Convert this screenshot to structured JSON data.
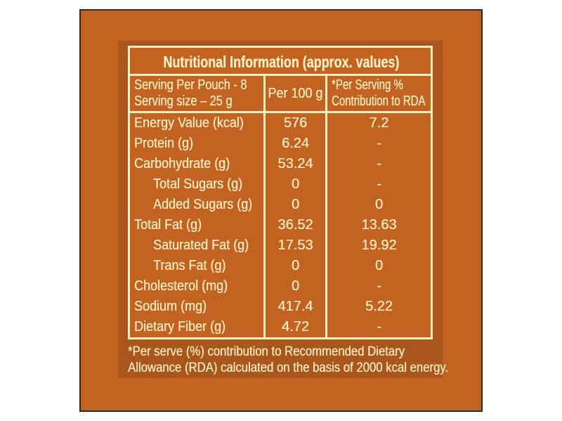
{
  "colors": {
    "page_bg": "#ffffff",
    "card_orange": "#c26321",
    "panel_shadow": "#ab561c",
    "cream": "#f9efc3",
    "card_border": "#2d2a26"
  },
  "label": {
    "title": "Nutritional Information (approx. values)",
    "header": {
      "col1_line1": "Serving Per Pouch - 8",
      "col1_line2": "Serving size – 25 g",
      "col2": "Per 100 g",
      "col3_line1": "*Per Serving %",
      "col3_line2": "Contribution to RDA"
    },
    "rows": [
      {
        "label": "Energy Value (kcal)",
        "indent": false,
        "per_100g": "576",
        "rda": "7.2"
      },
      {
        "label": "Protein (g)",
        "indent": false,
        "per_100g": "6.24",
        "rda": "-"
      },
      {
        "label": "Carbohydrate (g)",
        "indent": false,
        "per_100g": "53.24",
        "rda": "-"
      },
      {
        "label": "Total Sugars (g)",
        "indent": true,
        "per_100g": "0",
        "rda": "-"
      },
      {
        "label": "Added Sugars (g)",
        "indent": true,
        "per_100g": "0",
        "rda": "0"
      },
      {
        "label": "Total Fat (g)",
        "indent": false,
        "per_100g": "36.52",
        "rda": "13.63"
      },
      {
        "label": "Saturated Fat (g)",
        "indent": true,
        "per_100g": "17.53",
        "rda": "19.92"
      },
      {
        "label": "Trans Fat (g)",
        "indent": true,
        "per_100g": "0",
        "rda": "0"
      },
      {
        "label": "Cholesterol (mg)",
        "indent": false,
        "per_100g": "0",
        "rda": "-"
      },
      {
        "label": "Sodium (mg)",
        "indent": false,
        "per_100g": "417.4",
        "rda": "5.22"
      },
      {
        "label": "Dietary Fiber (g)",
        "indent": false,
        "per_100g": "4.72",
        "rda": "-"
      }
    ],
    "footnote_line1": "*Per serve (%) contribution to Recommended Dietary",
    "footnote_line2": "Allowance (RDA) calculated on the basis of 2000 kcal energy."
  }
}
